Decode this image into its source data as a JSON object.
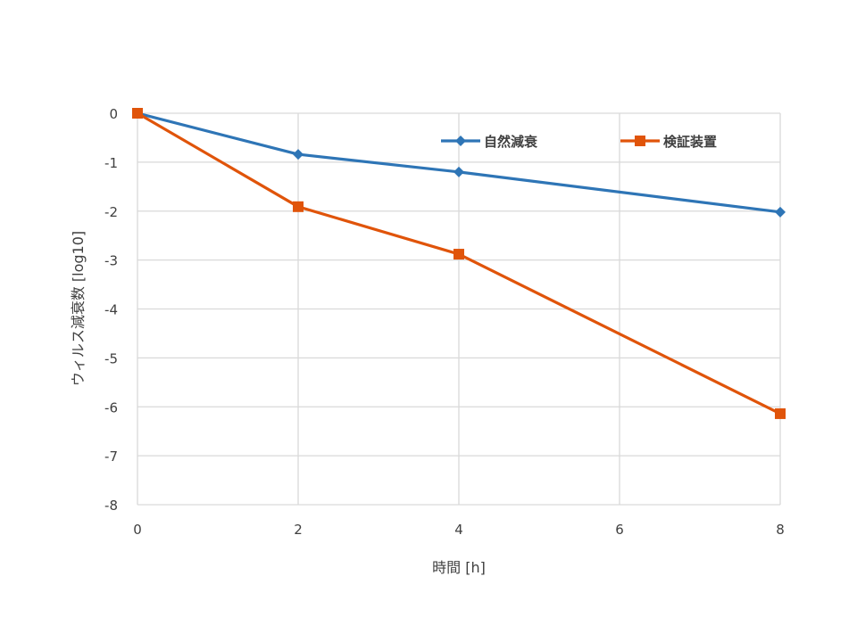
{
  "chart_data": {
    "type": "line",
    "title": "",
    "xlabel": "時間 [h]",
    "ylabel": "ウィルス減衰数 [log10]",
    "x": [
      0,
      2,
      4,
      8
    ],
    "xlim": [
      0,
      8
    ],
    "ylim": [
      -8,
      0
    ],
    "xticks": [
      0,
      2,
      4,
      6,
      8
    ],
    "yticks": [
      0,
      -1,
      -2,
      -3,
      -4,
      -5,
      -6,
      -7,
      -8
    ],
    "grid": true,
    "legend_position": "top-right inside plot",
    "series": [
      {
        "name": "自然減衰",
        "color": "#2E75B6",
        "marker": "diamond",
        "x": [
          0,
          2,
          4,
          8
        ],
        "values": [
          0,
          -0.84,
          -1.2,
          -2.02
        ]
      },
      {
        "name": "検証装置",
        "color": "#E0540A",
        "marker": "square",
        "x": [
          0,
          2,
          4,
          8
        ],
        "values": [
          0,
          -1.91,
          -2.88,
          -6.14
        ]
      }
    ]
  },
  "labels": {
    "xlabel": "時間 [h]",
    "ylabel": "ウィルス減衰数 [log10]"
  }
}
